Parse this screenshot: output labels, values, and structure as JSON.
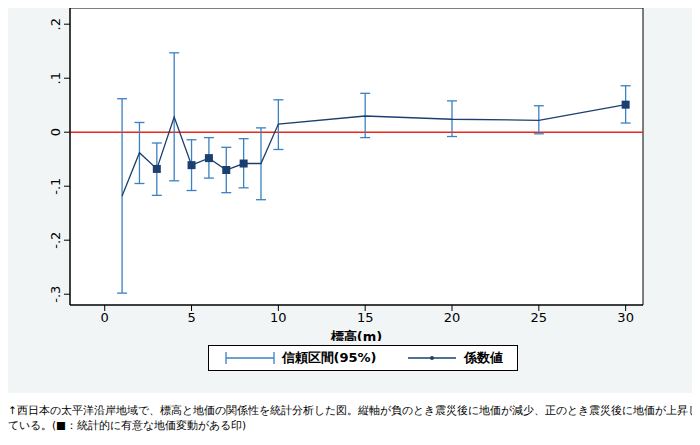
{
  "chart_data": {
    "type": "line",
    "xlabel": "標高(m)",
    "x": [
      1,
      2,
      3,
      4,
      5,
      6,
      7,
      8,
      9,
      10,
      15,
      20,
      25,
      30
    ],
    "xlim": [
      -2,
      31
    ],
    "xticks": [
      0,
      5,
      10,
      15,
      20,
      25,
      30
    ],
    "ylim": [
      -0.32,
      0.23
    ],
    "yticks": [
      {
        "value": -0.3,
        "label": "-.3"
      },
      {
        "value": -0.2,
        "label": "-.2"
      },
      {
        "value": -0.1,
        "label": "-.1"
      },
      0,
      {
        "value": 0.1,
        "label": ".1"
      },
      {
        "value": 0.2,
        "label": ".2"
      }
    ],
    "grid": false,
    "legend": "bottom",
    "reference_y": 0,
    "reference_color": "#e8291c",
    "series": [
      {
        "name": "信頼区間(95%)",
        "type": "errorbar",
        "color": "#3a80c2",
        "lower": [
          -0.298,
          -0.095,
          -0.117,
          -0.09,
          -0.108,
          -0.085,
          -0.112,
          -0.103,
          -0.125,
          -0.032,
          -0.01,
          -0.008,
          -0.003,
          0.017
        ],
        "upper": [
          0.062,
          0.018,
          -0.02,
          0.147,
          -0.014,
          -0.01,
          -0.028,
          -0.012,
          0.008,
          0.06,
          0.072,
          0.058,
          0.049,
          0.086
        ]
      },
      {
        "name": "係数値",
        "type": "line",
        "color": "#1b3f70",
        "marker": "square",
        "values": [
          -0.118,
          -0.038,
          -0.068,
          0.028,
          -0.061,
          -0.048,
          -0.07,
          -0.058,
          -0.058,
          0.015,
          0.03,
          0.024,
          0.022,
          0.051
        ],
        "significant": [
          false,
          false,
          true,
          false,
          true,
          true,
          true,
          true,
          false,
          false,
          false,
          false,
          false,
          true
        ]
      }
    ],
    "caption": [
      "↑西日本の太平洋沿岸地域で、標高と地価の関係性を統計分析した図。縦軸が負のとき震災後に地価が減少、正のとき震災後に地価が上昇し",
      "ている。(■：統計的に有意な地価変動がある印)"
    ]
  }
}
